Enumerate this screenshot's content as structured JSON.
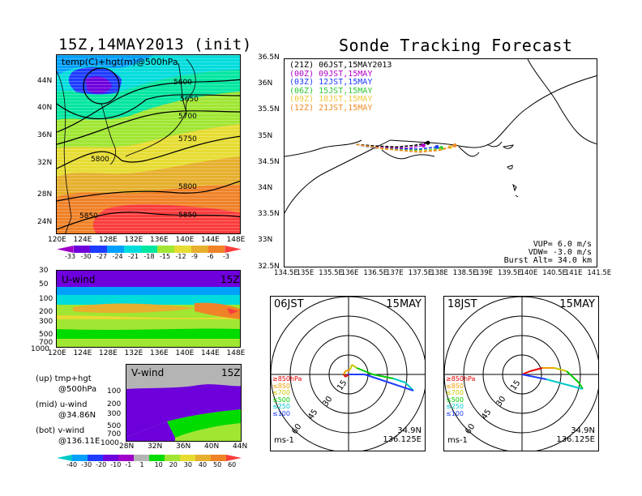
{
  "left_title": "15Z,14MAY2013 (init)",
  "right_title": "Sonde Tracking Forecast",
  "map500": {
    "label": "temp(C)+hgt(m)@500hPa",
    "lat_ticks": [
      "44N",
      "40N",
      "36N",
      "32N",
      "28N",
      "24N"
    ],
    "lon_ticks": [
      "120E",
      "124E",
      "128E",
      "132E",
      "136E",
      "140E",
      "144E",
      "148E"
    ],
    "contour_labels": [
      "5600",
      "5650",
      "5700",
      "5750",
      "5800",
      "5800",
      "5850",
      "5850"
    ],
    "colorbar": [
      "-33",
      "-30",
      "-27",
      "-24",
      "-21",
      "-18",
      "-15",
      "-12",
      "-9",
      "-6",
      "-3"
    ],
    "colors": [
      "#a000c8",
      "#6e00dc",
      "#1e3cff",
      "#00a0ff",
      "#00dcdc",
      "#00e6a0",
      "#a0e632",
      "#e6dc32",
      "#e6af2d",
      "#f08228",
      "#fa3c3c"
    ]
  },
  "uwind": {
    "title": "U-wind",
    "time": "15Z",
    "p_ticks": [
      "30",
      "50",
      "100",
      "200",
      "300",
      "500",
      "700",
      "1000"
    ],
    "lon_ticks": [
      "120E",
      "124E",
      "128E",
      "132E",
      "136E",
      "140E",
      "144E",
      "148E"
    ]
  },
  "vwind": {
    "title": "V-wind",
    "time": "15Z",
    "p_ticks": [
      "100",
      "200",
      "300",
      "500",
      "700",
      "1000"
    ],
    "lat_ticks": [
      "28N",
      "32N",
      "36N",
      "40N",
      "44N"
    ],
    "colorbar": [
      "-40",
      "-30",
      "-20",
      "-10",
      "-1",
      "1",
      "10",
      "20",
      "30",
      "40",
      "50",
      "60"
    ],
    "colors": [
      "#00c8c8",
      "#00a0ff",
      "#1e3cff",
      "#6e00dc",
      "#a000c8",
      "#b4b4b4",
      "#00dc00",
      "#a0e632",
      "#e6dc32",
      "#e6af2d",
      "#f08228",
      "#fa3c3c"
    ]
  },
  "legend_notes": [
    {
      "a": "(up) tmp+hgt",
      "b": "@500hPa"
    },
    {
      "a": "(mid) u-wind",
      "b": "@34.86N"
    },
    {
      "a": "(bot) v-wind",
      "b": "@136.11E"
    }
  ],
  "track": {
    "lat_ticks": [
      "36.5N",
      "36N",
      "35.5N",
      "35N",
      "34.5N",
      "34N",
      "33.5N",
      "33N",
      "32.5N"
    ],
    "lon_ticks": [
      "134.5E",
      "135E",
      "135.5E",
      "136E",
      "136.5E",
      "137E",
      "137.5E",
      "138E",
      "138.5E",
      "139E",
      "139.5E",
      "140E",
      "140.5E",
      "141E",
      "141.5E"
    ],
    "launches": [
      {
        "label": "(21Z)  06JST,15MAY2013",
        "color": "#000000"
      },
      {
        "label": "(00Z)  09JST,15MAY",
        "color": "#b400c8"
      },
      {
        "label": "(03Z)  12JST,15MAY",
        "color": "#1e3cff"
      },
      {
        "label": "(06Z)  15JST,15MAY",
        "color": "#32c832"
      },
      {
        "label": "(09Z)  18JST,15MAY",
        "color": "#f0c83c"
      },
      {
        "label": "(12Z)  21JST,15MAY",
        "color": "#f08c28"
      }
    ],
    "params": [
      "VUP=  6.0  m/s",
      "VDW= -3.0  m/s",
      "Burst Alt=  34.0  km"
    ]
  },
  "hodographs": [
    {
      "time": "06JST",
      "date": "15MAY",
      "lat": "34.9N",
      "lon": "136.125E",
      "unit": "ms-1"
    },
    {
      "time": "18JST",
      "date": "15MAY",
      "lat": "34.9N",
      "lon": "136.125E",
      "unit": "ms-1"
    }
  ],
  "hodo_rings": [
    "15",
    "30",
    "45",
    "60"
  ],
  "hodo_levels": [
    {
      "label": "≥850hPa",
      "color": "#e60000"
    },
    {
      "label": "≤850",
      "color": "#f0a000"
    },
    {
      "label": "≤700",
      "color": "#c8c800"
    },
    {
      "label": "≤500",
      "color": "#00c800"
    },
    {
      "label": "≤250",
      "color": "#00c8c8"
    },
    {
      "label": "≤100",
      "color": "#1e3cff"
    }
  ],
  "chart_data": [
    {
      "type": "heatmap",
      "title": "15Z,14MAY2013 (init)",
      "subtitle": "temp(C)+hgt(m)@500hPa",
      "x_range": [
        "120E",
        "149E"
      ],
      "y_range": [
        "22N",
        "47N"
      ],
      "contour_levels_m": [
        5600,
        5650,
        5700,
        5750,
        5800,
        5850
      ],
      "colorbar_levels_C": [
        -33,
        -30,
        -27,
        -24,
        -21,
        -18,
        -15,
        -12,
        -9,
        -6,
        -3
      ]
    },
    {
      "type": "heatmap",
      "title": "U-wind",
      "subtitle": "15Z",
      "x_range": [
        "120E",
        "149E"
      ],
      "y_ticks_hPa": [
        30,
        50,
        100,
        200,
        300,
        500,
        700,
        1000
      ]
    },
    {
      "type": "heatmap",
      "title": "V-wind",
      "subtitle": "15Z",
      "x_range": [
        "28N",
        "44N"
      ],
      "y_ticks_hPa": [
        100,
        200,
        300,
        500,
        700,
        1000
      ],
      "colorbar_levels": [
        -40,
        -30,
        -20,
        -10,
        -1,
        1,
        10,
        20,
        30,
        40,
        50,
        60
      ]
    },
    {
      "type": "line",
      "title": "Sonde Tracking Forecast",
      "xlim": [
        134.5,
        141.5
      ],
      "ylim": [
        32.5,
        36.5
      ],
      "series": [
        {
          "name": "(21Z)  06JST,15MAY2013",
          "x": [
            136.1,
            136.5,
            137.0,
            137.4,
            137.7
          ],
          "y": [
            34.87,
            34.84,
            34.82,
            34.85,
            34.9
          ]
        },
        {
          "name": "(00Z)  09JST,15MAY",
          "x": [
            136.1,
            136.4,
            136.9,
            137.3,
            137.6
          ],
          "y": [
            34.87,
            34.82,
            34.8,
            34.8,
            34.85
          ]
        },
        {
          "name": "(03Z)  12JST,15MAY",
          "x": [
            136.1,
            136.5,
            137.0,
            137.5,
            137.9
          ],
          "y": [
            34.87,
            34.8,
            34.78,
            34.78,
            34.82
          ]
        },
        {
          "name": "(06Z)  15JST,15MAY",
          "x": [
            136.1,
            136.6,
            137.2,
            137.7,
            138.0
          ],
          "y": [
            34.87,
            34.8,
            34.76,
            34.76,
            34.8
          ]
        },
        {
          "name": "(09Z)  18JST,15MAY",
          "x": [
            136.1,
            136.7,
            137.4,
            137.9,
            138.2
          ],
          "y": [
            34.87,
            34.78,
            34.74,
            34.76,
            34.82
          ]
        },
        {
          "name": "(12Z)  21JST,15MAY",
          "x": [
            136.1,
            136.8,
            137.5,
            138.0,
            138.3
          ],
          "y": [
            34.87,
            34.78,
            34.72,
            34.76,
            34.85
          ]
        }
      ]
    },
    {
      "type": "line",
      "title": "06JST 15MAY",
      "rings": [
        15,
        30,
        45,
        60
      ]
    },
    {
      "type": "line",
      "title": "18JST 15MAY",
      "rings": [
        15,
        30,
        45,
        60
      ]
    }
  ]
}
